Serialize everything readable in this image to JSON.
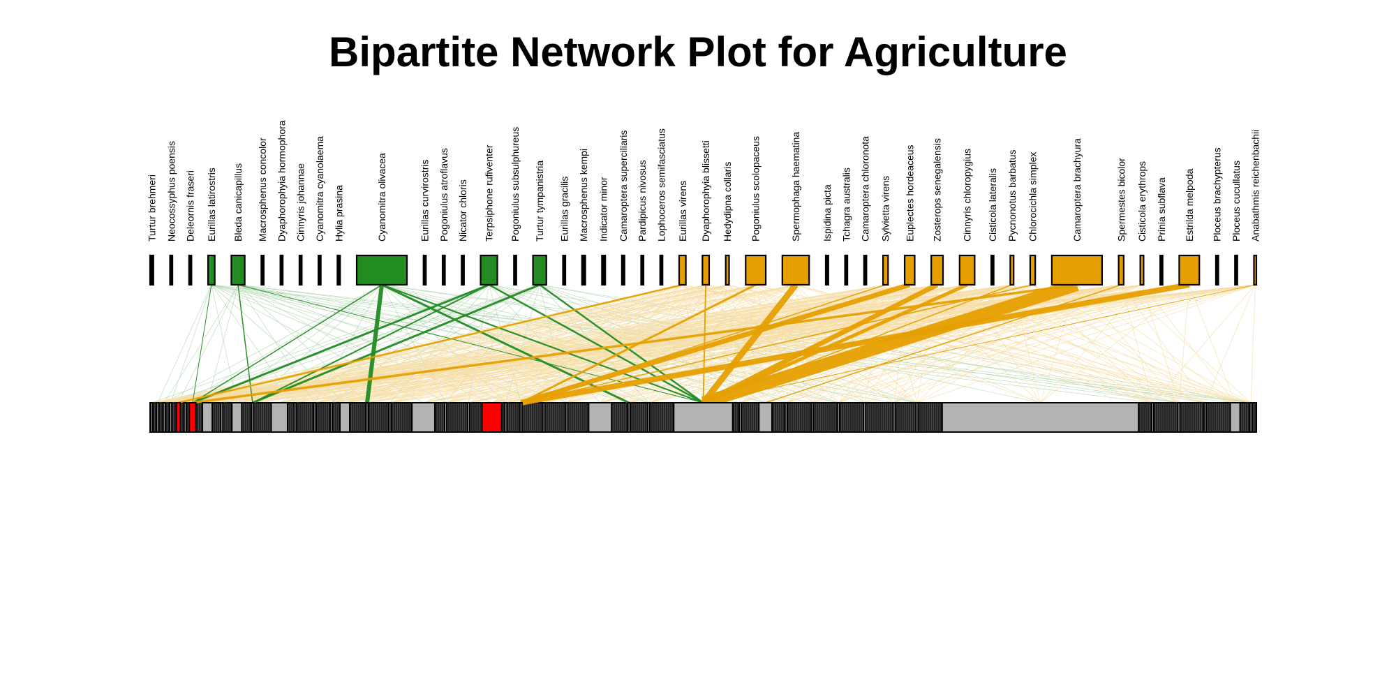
{
  "chart_data": {
    "type": "bipartite-network",
    "title": "Bipartite Network Plot for Agriculture",
    "colors": {
      "forest": "#228b22",
      "agriculture": "#e69f00",
      "other": "#000000",
      "lower": "#b3b3b3",
      "lower_highlight": "#ff0000",
      "border": "#000000"
    },
    "upper_species": [
      {
        "name": "Turtur brehmeri",
        "weight": 1,
        "group": "other"
      },
      {
        "name": "Neocossyphus poensis",
        "weight": 0.3,
        "group": "other"
      },
      {
        "name": "Deleornis fraseri",
        "weight": 0.3,
        "group": "other"
      },
      {
        "name": "Eurillas latirostris",
        "weight": 2,
        "group": "forest"
      },
      {
        "name": "Bleda canicapillus",
        "weight": 4,
        "group": "forest"
      },
      {
        "name": "Macrosphenus concolor",
        "weight": 0.3,
        "group": "other"
      },
      {
        "name": "Dyaphorophyia hormophora",
        "weight": 0.3,
        "group": "other"
      },
      {
        "name": "Cinnyris johannae",
        "weight": 0.3,
        "group": "other"
      },
      {
        "name": "Cyanomitra cyanolaema",
        "weight": 0.3,
        "group": "other"
      },
      {
        "name": "Hylia prasina",
        "weight": 0.8,
        "group": "other"
      },
      {
        "name": "Cyanomitra olivacea",
        "weight": 15,
        "group": "forest"
      },
      {
        "name": "Eurillas curvirostris",
        "weight": 0.6,
        "group": "other"
      },
      {
        "name": "Pogoniulus atroflavus",
        "weight": 0.3,
        "group": "other"
      },
      {
        "name": "Nicator chloris",
        "weight": 0.3,
        "group": "other"
      },
      {
        "name": "Terpsiphone rufiventer",
        "weight": 5,
        "group": "forest"
      },
      {
        "name": "Pogoniulus subsulphureus",
        "weight": 0.3,
        "group": "other"
      },
      {
        "name": "Turtur tympanistria",
        "weight": 4,
        "group": "forest"
      },
      {
        "name": "Eurillas gracilis",
        "weight": 0.3,
        "group": "other"
      },
      {
        "name": "Macrosphenus kempi",
        "weight": 1,
        "group": "other"
      },
      {
        "name": "Indicator minor",
        "weight": 1,
        "group": "other"
      },
      {
        "name": "Camaroptera superciliaris",
        "weight": 0.8,
        "group": "other"
      },
      {
        "name": "Pardipicus nivosus",
        "weight": 0.3,
        "group": "other"
      },
      {
        "name": "Lophoceros semifasciatus",
        "weight": 0.3,
        "group": "other"
      },
      {
        "name": "Eurillas virens",
        "weight": 2,
        "group": "agriculture"
      },
      {
        "name": "Dyaphorophyia blissetti",
        "weight": 2,
        "group": "agriculture"
      },
      {
        "name": "Hedydipna collaris",
        "weight": 1,
        "group": "agriculture"
      },
      {
        "name": "Pogoniulus scolopaceus",
        "weight": 6,
        "group": "agriculture"
      },
      {
        "name": "Spermophaga haematina",
        "weight": 8,
        "group": "agriculture"
      },
      {
        "name": "Ispidina picta",
        "weight": 0.8,
        "group": "other"
      },
      {
        "name": "Tchagra australis",
        "weight": 0.6,
        "group": "other"
      },
      {
        "name": "Camaroptera chloronota",
        "weight": 0.6,
        "group": "other"
      },
      {
        "name": "Sylvietta virens",
        "weight": 1.5,
        "group": "agriculture"
      },
      {
        "name": "Euplectes hordeaceus",
        "weight": 3,
        "group": "agriculture"
      },
      {
        "name": "Zosterops senegalensis",
        "weight": 3.5,
        "group": "agriculture"
      },
      {
        "name": "Cinnyris chloropygius",
        "weight": 4.5,
        "group": "agriculture"
      },
      {
        "name": "Cisticola lateralis",
        "weight": 0.3,
        "group": "other"
      },
      {
        "name": "Pycnonotus barbatus",
        "weight": 1,
        "group": "agriculture"
      },
      {
        "name": "Chlorocichla simplex",
        "weight": 1.5,
        "group": "agriculture"
      },
      {
        "name": "Camaroptera brachyura",
        "weight": 15,
        "group": "agriculture"
      },
      {
        "name": "Spermestes bicolor",
        "weight": 1.5,
        "group": "agriculture"
      },
      {
        "name": "Cisticola erythrops",
        "weight": 1,
        "group": "agriculture"
      },
      {
        "name": "Prinia subflava",
        "weight": 0.3,
        "group": "other"
      },
      {
        "name": "Estrilda melpoda",
        "weight": 6,
        "group": "agriculture"
      },
      {
        "name": "Ploceus brachypterus",
        "weight": 0.3,
        "group": "other"
      },
      {
        "name": "Ploceus cucullatus",
        "weight": 0.3,
        "group": "other"
      },
      {
        "name": "Anabathmis reichenbachii",
        "weight": 0.5,
        "group": "agriculture"
      }
    ],
    "major_links": [
      {
        "from": "Cyanomitra olivacea",
        "to": 16,
        "weight": 6,
        "group": "forest"
      },
      {
        "from": "Cyanomitra olivacea",
        "to": 27,
        "weight": 3,
        "group": "forest"
      },
      {
        "from": "Cyanomitra olivacea",
        "to": 29,
        "weight": 2.2,
        "group": "forest"
      },
      {
        "from": "Cyanomitra olivacea",
        "to": 6,
        "weight": 1.5,
        "group": "forest"
      },
      {
        "from": "Terpsiphone rufiventer",
        "to": 6,
        "weight": 3,
        "group": "forest"
      },
      {
        "from": "Terpsiphone rufiventer",
        "to": 29,
        "weight": 2.5,
        "group": "forest"
      },
      {
        "from": "Terpsiphone rufiventer",
        "to": 10,
        "weight": 2,
        "group": "forest"
      },
      {
        "from": "Turtur tympanistria",
        "to": 10,
        "weight": 3,
        "group": "forest"
      },
      {
        "from": "Turtur tympanistria",
        "to": 29,
        "weight": 2.5,
        "group": "forest"
      },
      {
        "from": "Bleda canicapillus",
        "to": 10,
        "weight": 1.5,
        "group": "forest"
      },
      {
        "from": "Bleda canicapillus",
        "to": 29,
        "weight": 1,
        "group": "forest"
      },
      {
        "from": "Eurillas latirostris",
        "to": 6,
        "weight": 1,
        "group": "forest"
      },
      {
        "from": "Camaroptera brachyura",
        "to": 29,
        "weight": 18,
        "group": "agriculture"
      },
      {
        "from": "Spermophaga haematina",
        "to": 29,
        "weight": 9,
        "group": "agriculture"
      },
      {
        "from": "Estrilda melpoda",
        "to": 23,
        "weight": 8,
        "group": "agriculture"
      },
      {
        "from": "Zosterops senegalensis",
        "to": 29,
        "weight": 7,
        "group": "agriculture"
      },
      {
        "from": "Euplectes hordeaceus",
        "to": 23,
        "weight": 7,
        "group": "agriculture"
      },
      {
        "from": "Cinnyris chloropygius",
        "to": 29,
        "weight": 5,
        "group": "agriculture"
      },
      {
        "from": "Pogoniulus scolopaceus",
        "to": 23,
        "weight": 3,
        "group": "agriculture"
      },
      {
        "from": "Eurillas virens",
        "to": 4,
        "weight": 2.5,
        "group": "agriculture"
      },
      {
        "from": "Dyaphorophyia blissetti",
        "to": 29,
        "weight": 2,
        "group": "agriculture"
      },
      {
        "from": "Camaroptera brachyura",
        "to": 6,
        "weight": 3.5,
        "group": "agriculture"
      },
      {
        "from": "Sylvietta virens",
        "to": 23,
        "weight": 1.5,
        "group": "agriculture"
      },
      {
        "from": "Pycnonotus barbatus",
        "to": 29,
        "weight": 1.5,
        "group": "agriculture"
      },
      {
        "from": "Chlorocichla simplex",
        "to": 23,
        "weight": 1.5,
        "group": "agriculture"
      },
      {
        "from": "Spermestes bicolor",
        "to": 31,
        "weight": 1.5,
        "group": "agriculture"
      },
      {
        "from": "Anabathmis reichenbachii",
        "to": 29,
        "weight": 1,
        "group": "agriculture"
      }
    ],
    "lower_nodes": [
      {
        "x": 0.1,
        "w": 0.1
      },
      {
        "x": 1,
        "w": 0.1
      },
      {
        "x": 2,
        "w": 0.1
      },
      {
        "x": 3,
        "w": 0.1
      },
      {
        "x": 4,
        "w": 0.6,
        "highlight": true
      },
      {
        "x": 5.2,
        "w": 0.1
      },
      {
        "x": 6,
        "w": 1,
        "highlight": true
      },
      {
        "x": 8,
        "w": 1.5
      },
      {
        "x": 10.8,
        "w": 0.1
      },
      {
        "x": 12.5,
        "w": 1.5
      },
      {
        "x": 15.5,
        "w": 0.1
      },
      {
        "x": 18.5,
        "w": 2.5
      },
      {
        "x": 22,
        "w": 0.1
      },
      {
        "x": 25,
        "w": 0.1
      },
      {
        "x": 27.5,
        "w": 0.1
      },
      {
        "x": 29,
        "w": 1.5
      },
      {
        "x": 33,
        "w": 0.1
      },
      {
        "x": 36.5,
        "w": 0.1
      },
      {
        "x": 40,
        "w": 3.5
      },
      {
        "x": 45,
        "w": 0.1
      },
      {
        "x": 48.5,
        "w": 0.1
      },
      {
        "x": 50.7,
        "w": 3,
        "highlight": true
      },
      {
        "x": 54.2,
        "w": 0.1
      },
      {
        "x": 56.5,
        "w": 0.1
      },
      {
        "x": 60,
        "w": 0.1
      },
      {
        "x": 63.5,
        "w": 0.1
      },
      {
        "x": 67,
        "w": 3.5
      },
      {
        "x": 73,
        "w": 0.1
      },
      {
        "x": 76,
        "w": 0.1
      },
      {
        "x": 80,
        "w": 9
      },
      {
        "x": 90,
        "w": 0.1
      },
      {
        "x": 93,
        "w": 2
      },
      {
        "x": 97,
        "w": 0.1
      },
      {
        "x": 101,
        "w": 0.1
      },
      {
        "x": 105,
        "w": 0.1
      },
      {
        "x": 109,
        "w": 0.1
      },
      {
        "x": 113.5,
        "w": 0.1
      },
      {
        "x": 117,
        "w": 0.1
      },
      {
        "x": 121,
        "w": 30
      },
      {
        "x": 153,
        "w": 0.1
      },
      {
        "x": 157,
        "w": 0.1
      },
      {
        "x": 161,
        "w": 0.1
      },
      {
        "x": 165,
        "w": 1.5
      },
      {
        "x": 168,
        "w": 0.1
      }
    ]
  }
}
